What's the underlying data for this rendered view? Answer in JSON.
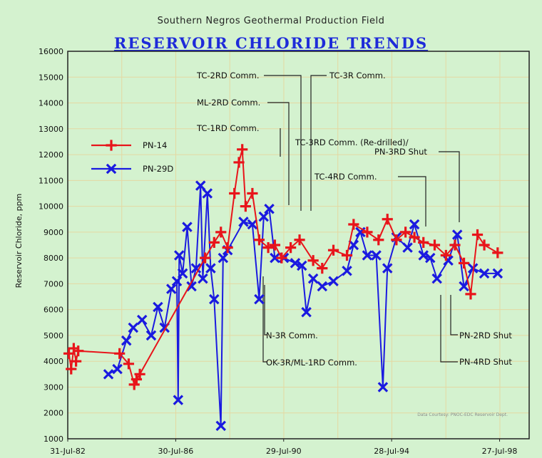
{
  "colors": {
    "background": "#d4f2cf",
    "series_pn14": "#e8141a",
    "series_pn29d": "#1a1ae0",
    "title": "#1e2bd9"
  },
  "chart_data": {
    "type": "line",
    "supertitle": "Southern Negros Geothermal Production Field",
    "title": "RESERVOIR CHLORIDE TRENDS",
    "ylabel": "Reservoir Chloride, ppm",
    "xlabel": "",
    "ylim": [
      1000,
      16000
    ],
    "yticks": [
      "1000",
      "2000",
      "3000",
      "4000",
      "5000",
      "6000",
      "7000",
      "8000",
      "9000",
      "10000",
      "11000",
      "12000",
      "13000",
      "14000",
      "15000",
      "16000"
    ],
    "xlim": [
      "1982-07-31",
      "1999-08-31"
    ],
    "xticks": [
      {
        "date": "1982-07-31",
        "label": "31-Jul-82"
      },
      {
        "date": "1986-07-30",
        "label": "30-Jul-86"
      },
      {
        "date": "1990-07-29",
        "label": "29-Jul-90"
      },
      {
        "date": "1994-07-28",
        "label": "28-Jul-94"
      },
      {
        "date": "1998-07-27",
        "label": "27-Jul-98"
      }
    ],
    "legend_position": "upper-left",
    "series": [
      {
        "name": "PN-14",
        "marker": "plus",
        "points": [
          [
            "1982-08-15",
            4300
          ],
          [
            "1982-09-15",
            3700
          ],
          [
            "1982-10-20",
            4500
          ],
          [
            "1982-11-20",
            4000
          ],
          [
            "1982-12-20",
            4400
          ],
          [
            "1984-07-01",
            4300
          ],
          [
            "1984-11-01",
            3900
          ],
          [
            "1985-01-15",
            3100
          ],
          [
            "1985-02-15",
            3300
          ],
          [
            "1985-04-01",
            3500
          ],
          [
            "1987-09-01",
            8000
          ],
          [
            "1988-01-01",
            8600
          ],
          [
            "1988-04-01",
            9000
          ],
          [
            "1988-07-01",
            8400
          ],
          [
            "1988-10-01",
            10500
          ],
          [
            "1988-12-01",
            11700
          ],
          [
            "1989-01-15",
            12200
          ],
          [
            "1989-03-01",
            10000
          ],
          [
            "1989-06-01",
            10500
          ],
          [
            "1989-09-01",
            8700
          ],
          [
            "1990-01-01",
            8400
          ],
          [
            "1990-04-01",
            8500
          ],
          [
            "1990-07-01",
            8000
          ],
          [
            "1990-11-01",
            8400
          ],
          [
            "1991-03-01",
            8700
          ],
          [
            "1991-09-01",
            7900
          ],
          [
            "1992-01-01",
            7600
          ],
          [
            "1992-06-01",
            8300
          ],
          [
            "1992-12-01",
            8100
          ],
          [
            "1993-03-01",
            9300
          ],
          [
            "1993-09-01",
            9000
          ],
          [
            "1994-02-01",
            8700
          ],
          [
            "1994-06-01",
            9500
          ],
          [
            "1994-10-01",
            8700
          ],
          [
            "1995-02-01",
            9000
          ],
          [
            "1995-06-01",
            8800
          ],
          [
            "1995-10-01",
            8600
          ],
          [
            "1996-03-01",
            8500
          ],
          [
            "1996-08-01",
            8100
          ],
          [
            "1996-12-01",
            8500
          ],
          [
            "1997-04-01",
            7800
          ],
          [
            "1997-07-01",
            6600
          ],
          [
            "1997-10-01",
            8900
          ],
          [
            "1998-01-01",
            8500
          ],
          [
            "1998-07-01",
            8200
          ]
        ]
      },
      {
        "name": "PN-29D",
        "marker": "x",
        "points": [
          [
            "1984-02-01",
            3500
          ],
          [
            "1984-06-01",
            3700
          ],
          [
            "1984-10-01",
            4800
          ],
          [
            "1985-01-01",
            5300
          ],
          [
            "1985-05-01",
            5600
          ],
          [
            "1985-09-01",
            5000
          ],
          [
            "1985-12-01",
            6100
          ],
          [
            "1986-03-01",
            5300
          ],
          [
            "1986-06-01",
            6800
          ],
          [
            "1986-08-15",
            7100
          ],
          [
            "1986-09-01",
            2500
          ],
          [
            "1986-09-15",
            8100
          ],
          [
            "1986-11-01",
            7400
          ],
          [
            "1987-01-01",
            9200
          ],
          [
            "1987-03-01",
            6900
          ],
          [
            "1987-05-01",
            7600
          ],
          [
            "1987-07-01",
            10800
          ],
          [
            "1987-08-01",
            7200
          ],
          [
            "1987-10-01",
            10500
          ],
          [
            "1987-11-15",
            7600
          ],
          [
            "1988-01-01",
            6400
          ],
          [
            "1988-04-01",
            1500
          ],
          [
            "1988-05-01",
            8000
          ],
          [
            "1988-07-01",
            8300
          ],
          [
            "1989-02-01",
            9400
          ],
          [
            "1989-06-01",
            9300
          ],
          [
            "1989-09-01",
            6400
          ],
          [
            "1989-11-01",
            9600
          ],
          [
            "1990-01-15",
            9900
          ],
          [
            "1990-04-01",
            8000
          ],
          [
            "1990-08-01",
            8000
          ],
          [
            "1991-01-01",
            7800
          ],
          [
            "1991-04-01",
            7700
          ],
          [
            "1991-06-01",
            5900
          ],
          [
            "1991-09-01",
            7200
          ],
          [
            "1992-01-01",
            6900
          ],
          [
            "1992-06-01",
            7100
          ],
          [
            "1992-12-01",
            7500
          ],
          [
            "1993-03-01",
            8500
          ],
          [
            "1993-06-01",
            9000
          ],
          [
            "1993-09-01",
            8100
          ],
          [
            "1994-01-01",
            8100
          ],
          [
            "1994-04-01",
            3000
          ],
          [
            "1994-06-01",
            7600
          ],
          [
            "1994-10-01",
            8800
          ],
          [
            "1995-03-01",
            8400
          ],
          [
            "1995-06-01",
            9300
          ],
          [
            "1995-10-01",
            8100
          ],
          [
            "1996-01-01",
            8000
          ],
          [
            "1996-04-01",
            7200
          ],
          [
            "1996-09-01",
            7900
          ],
          [
            "1997-01-01",
            8900
          ],
          [
            "1997-04-01",
            6900
          ],
          [
            "1997-08-01",
            7600
          ],
          [
            "1998-01-01",
            7400
          ],
          [
            "1998-07-01",
            7400
          ]
        ]
      }
    ],
    "annotations": [
      "TC-2RD Comm.",
      "TC-3R Comm.",
      "ML-2RD Comm.",
      "TC-1RD Comm.",
      "TC-3RD Comm. (Re-drilled)/",
      "PN-3RD Shut",
      "TC-4RD Comm.",
      "N-3R Comm.",
      "OK-3R/ML-1RD Comm.",
      "PN-2RD Shut",
      "PN-4RD Shut"
    ],
    "credit": "Data Courtesy: PNOC-EDC Reservoir Dept."
  }
}
